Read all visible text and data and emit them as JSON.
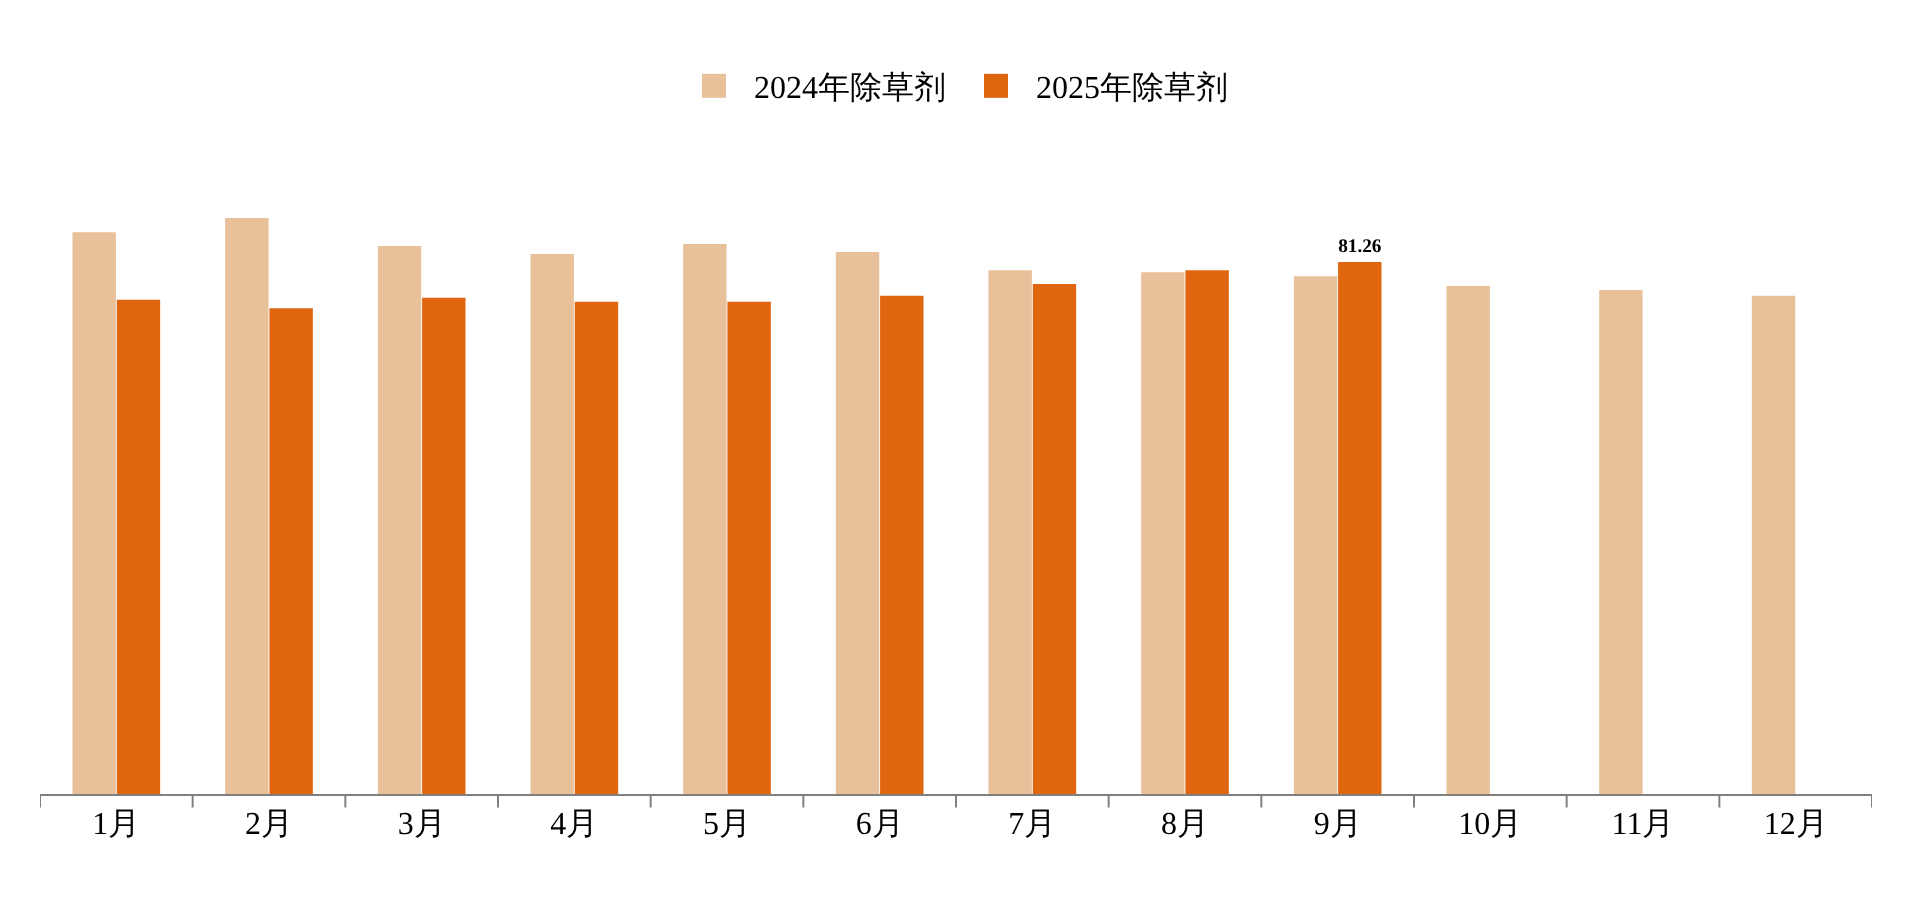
{
  "chart_data": {
    "type": "bar",
    "categories": [
      "1月",
      "2月",
      "3月",
      "4月",
      "5月",
      "6月",
      "7月",
      "8月",
      "9月",
      "10月",
      "11月",
      "12月"
    ],
    "series": [
      {
        "name": "2024年除草剂",
        "color": "#e8c09a",
        "values": [
          85.8,
          88.0,
          83.7,
          82.5,
          84.0,
          82.8,
          80.0,
          79.7,
          79.1,
          77.6,
          77.0,
          76.1
        ]
      },
      {
        "name": "2025年除草剂",
        "color": "#e0650f",
        "values": [
          75.5,
          74.2,
          75.8,
          75.2,
          75.2,
          76.1,
          77.9,
          80.0,
          81.26,
          null,
          null,
          null
        ],
        "value_labels": [
          null,
          null,
          null,
          null,
          null,
          null,
          null,
          null,
          "81.26",
          null,
          null,
          null
        ]
      }
    ],
    "legend": "top"
  }
}
